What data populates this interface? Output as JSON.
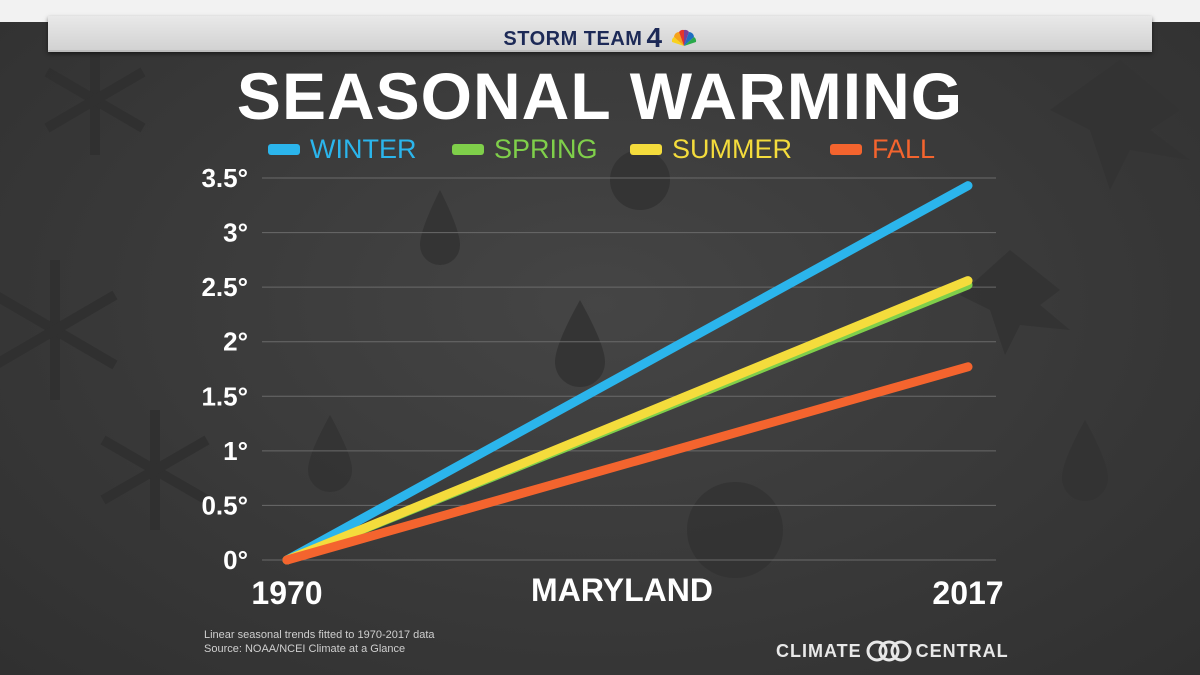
{
  "header": {
    "station_label": "STORM TEAM",
    "station_number": "4"
  },
  "chart_data": {
    "type": "line",
    "title": "SEASONAL WARMING",
    "xlabel": "MARYLAND",
    "ylabel": "",
    "x": [
      1970,
      2017
    ],
    "xticks": [
      "1970",
      "2017"
    ],
    "ylim": [
      0,
      3.5
    ],
    "yticks": [
      0,
      0.5,
      1,
      1.5,
      2,
      2.5,
      3,
      3.5
    ],
    "ytick_labels": [
      "0°",
      "0.5°",
      "1°",
      "1.5°",
      "2°",
      "2.5°",
      "3°",
      "3.5°"
    ],
    "grid": true,
    "legend_position": "top",
    "series": [
      {
        "name": "WINTER",
        "color": "#2bb5ec",
        "values": [
          0,
          3.43
        ]
      },
      {
        "name": "SPRING",
        "color": "#7fcf4a",
        "values": [
          0,
          2.52
        ]
      },
      {
        "name": "SUMMER",
        "color": "#f4dc3c",
        "values": [
          0,
          2.56
        ]
      },
      {
        "name": "FALL",
        "color": "#f4642e",
        "values": [
          0,
          1.77
        ]
      }
    ]
  },
  "footnote": {
    "line1": "Linear seasonal trends fitted to 1970-2017 data",
    "line2": "Source: NOAA/NCEI Climate at a Glance"
  },
  "branding": {
    "left": "CLIMATE",
    "right": "CENTRAL"
  }
}
